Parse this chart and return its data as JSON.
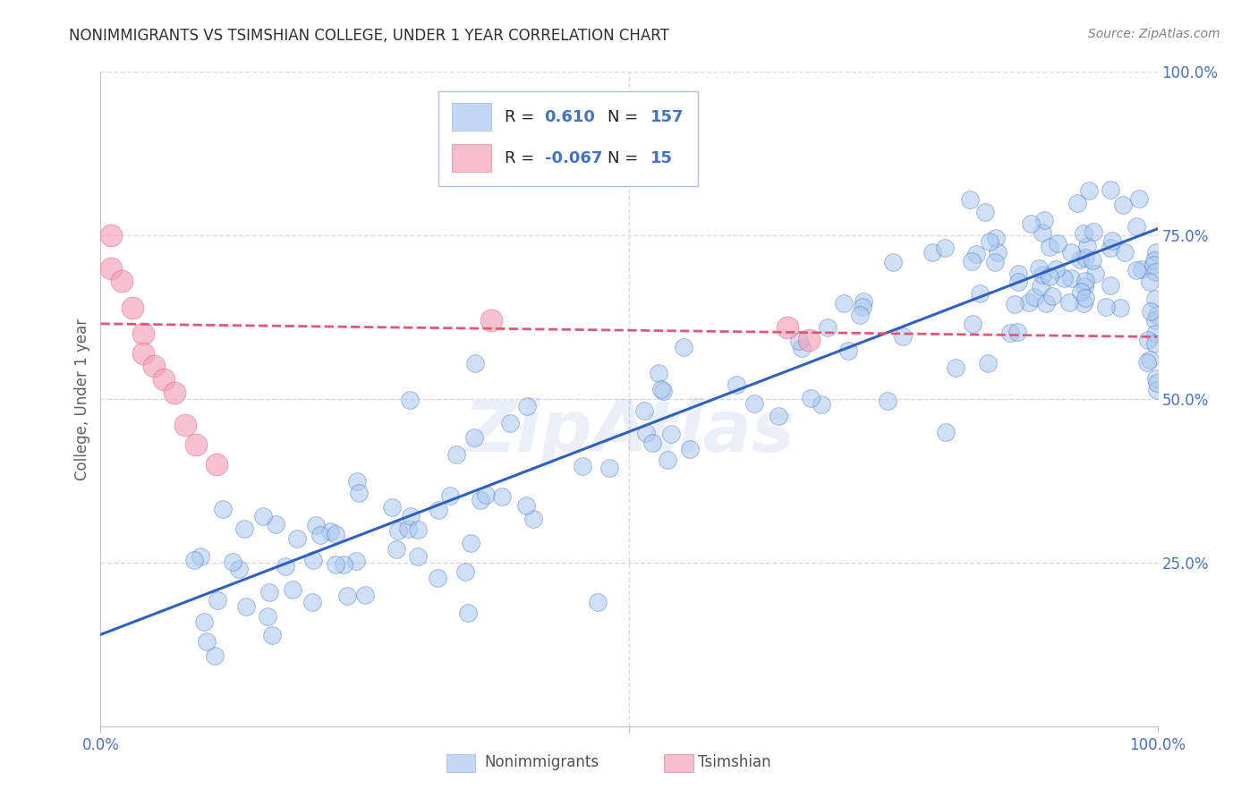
{
  "title": "NONIMMIGRANTS VS TSIMSHIAN COLLEGE, UNDER 1 YEAR CORRELATION CHART",
  "source": "Source: ZipAtlas.com",
  "ylabel": "College, Under 1 year",
  "xlim": [
    0.0,
    1.0
  ],
  "ylim": [
    0.0,
    1.0
  ],
  "ytick_labels": [
    "25.0%",
    "50.0%",
    "75.0%",
    "100.0%"
  ],
  "ytick_positions": [
    0.25,
    0.5,
    0.75,
    1.0
  ],
  "blue_color": "#A8C8F0",
  "pink_color": "#F4A0B8",
  "blue_line_color": "#3060C0",
  "pink_line_color": "#E05878",
  "grid_color": "#D8D8E8",
  "watermark": "ZipAtlas",
  "blue_line_y_start": 0.14,
  "blue_line_y_end": 0.76,
  "pink_line_y_start": 0.615,
  "pink_line_y_end": 0.595,
  "background_color": "#FFFFFF",
  "title_color": "#303030",
  "axis_label_color": "#606060",
  "tick_label_color": "#4472C4",
  "source_color": "#808080"
}
